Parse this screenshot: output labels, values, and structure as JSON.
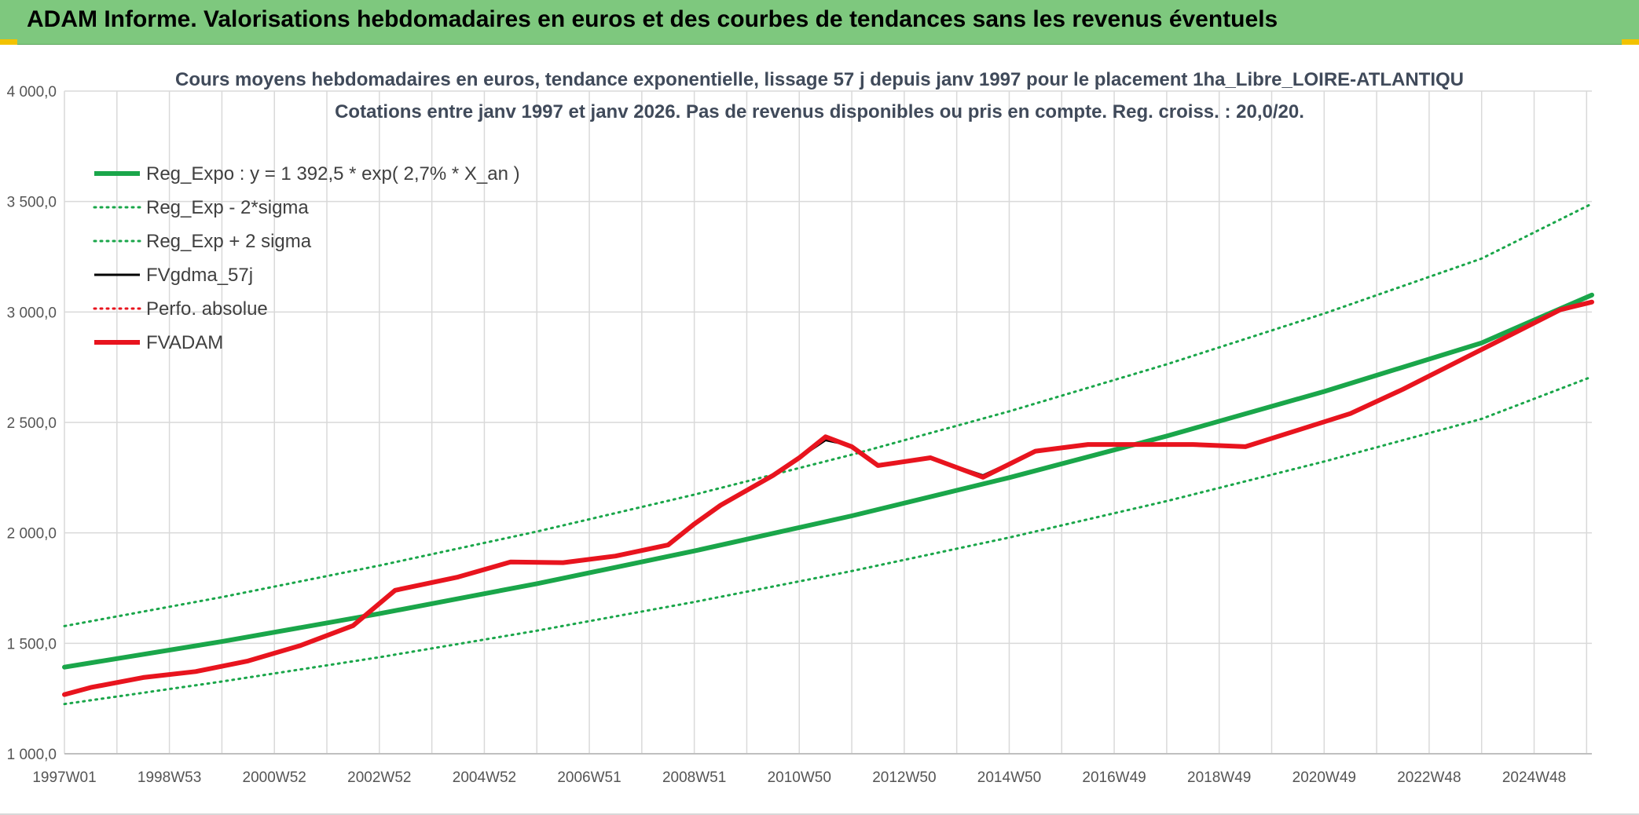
{
  "header": {
    "title": "ADAM Informe. Valorisations hebdomadaires en euros et des courbes de tendances sans les revenus éventuels"
  },
  "colors": {
    "banner": "#7ec87e",
    "accent_yellow": "#f2c200",
    "green": "#1aa64a",
    "red": "#e8141e",
    "black": "#000000"
  },
  "chart_data": {
    "type": "line",
    "title_line1": "Cours moyens hebdomadaires en euros, tendance exponentielle, lissage 57 j depuis janv 1997 pour le placement 1ha_Libre_LOIRE-ATLANTIQU",
    "title_line2": "Cotations entre janv 1997 et janv 2026. Pas de revenus disponibles ou pris en compte. Reg. croiss. : 20,0/20.",
    "ylim": [
      1000,
      4000
    ],
    "y_ticks": [
      {
        "value": 1000,
        "label": "1 000,0"
      },
      {
        "value": 1500,
        "label": "1 500,0"
      },
      {
        "value": 2000,
        "label": "2 000,0"
      },
      {
        "value": 2500,
        "label": "2 500,0"
      },
      {
        "value": 3000,
        "label": "3 000,0"
      },
      {
        "value": 3500,
        "label": "3 500,0"
      },
      {
        "value": 4000,
        "label": "4 000,0"
      }
    ],
    "xlim": [
      1997.0,
      2026.1
    ],
    "x_ticks": [
      {
        "value": 1997.0,
        "label": "1997W01"
      },
      {
        "value": 1999.0,
        "label": "1998W53"
      },
      {
        "value": 2001.0,
        "label": "2000W52"
      },
      {
        "value": 2003.0,
        "label": "2002W52"
      },
      {
        "value": 2005.0,
        "label": "2004W52"
      },
      {
        "value": 2007.0,
        "label": "2006W51"
      },
      {
        "value": 2009.0,
        "label": "2008W51"
      },
      {
        "value": 2011.0,
        "label": "2010W50"
      },
      {
        "value": 2013.0,
        "label": "2012W50"
      },
      {
        "value": 2015.0,
        "label": "2014W50"
      },
      {
        "value": 2017.0,
        "label": "2016W49"
      },
      {
        "value": 2019.0,
        "label": "2018W49"
      },
      {
        "value": 2021.0,
        "label": "2020W49"
      },
      {
        "value": 2023.0,
        "label": "2022W48"
      },
      {
        "value": 2025.0,
        "label": "2024W48"
      }
    ],
    "series": [
      {
        "name": "Reg_Expo : y = 1 392,5 * exp( 2,7% *  X_an )",
        "color": "#1aa64a",
        "style": "solid",
        "width": 6,
        "x": [
          1997,
          2000,
          2003,
          2006,
          2009,
          2012,
          2015,
          2018,
          2021,
          2024,
          2026.1
        ],
        "y": [
          1392,
          1508,
          1634,
          1770,
          1918,
          2077,
          2250,
          2438,
          2640,
          2860,
          3077
        ]
      },
      {
        "name": "Reg_Exp - 2*sigma",
        "color": "#1aa64a",
        "style": "dotted",
        "width": 3,
        "x": [
          1997,
          2000,
          2003,
          2006,
          2009,
          2012,
          2015,
          2018,
          2021,
          2024,
          2026.1
        ],
        "y": [
          1225,
          1327,
          1437,
          1557,
          1687,
          1827,
          1979,
          2144,
          2323,
          2516,
          2707
        ]
      },
      {
        "name": "Reg_Exp + 2 sigma",
        "color": "#1aa64a",
        "style": "dotted",
        "width": 3,
        "x": [
          1997,
          2000,
          2003,
          2006,
          2009,
          2012,
          2015,
          2018,
          2021,
          2024,
          2026.1
        ],
        "y": [
          1578,
          1709,
          1852,
          2006,
          2173,
          2354,
          2550,
          2763,
          2993,
          3242,
          3490
        ]
      },
      {
        "name": "FVgdma_57j",
        "color": "#000000",
        "style": "solid",
        "width": 3,
        "x": [
          1997,
          1997.5,
          1998.5,
          1999.5,
          2000.5,
          2001.5,
          2002.5,
          2003.3,
          2004.5,
          2005.5,
          2006.5,
          2007.5,
          2008.5,
          2009.0,
          2009.5,
          2010.5,
          2011.0,
          2011.5,
          2012.0,
          2012.5,
          2013.5,
          2014.5,
          2015.5,
          2016.5,
          2017.5,
          2018.5,
          2019.5,
          2020.5,
          2021.5,
          2022.5,
          2023.5,
          2024.5,
          2025.5,
          2026.1
        ],
        "y": [
          1268,
          1300,
          1345,
          1372,
          1420,
          1490,
          1580,
          1740,
          1800,
          1868,
          1865,
          1895,
          1945,
          2040,
          2125,
          2260,
          2340,
          2420,
          2395,
          2310,
          2340,
          2260,
          2370,
          2400,
          2400,
          2400,
          2392,
          2465,
          2540,
          2650,
          2770,
          2890,
          3010,
          3045
        ]
      },
      {
        "name": "Perfo. absolue",
        "color": "#e8141e",
        "style": "dotted",
        "width": 3,
        "x": [],
        "y": []
      },
      {
        "name": "FVADAM",
        "color": "#e8141e",
        "style": "solid",
        "width": 6,
        "x": [
          1997,
          1997.5,
          1998.5,
          1999.5,
          2000.5,
          2001.5,
          2002.5,
          2003.3,
          2004.5,
          2005.5,
          2006.5,
          2007.5,
          2008.5,
          2009.0,
          2009.5,
          2010.5,
          2011.0,
          2011.5,
          2012.0,
          2012.5,
          2013.5,
          2014.5,
          2015.5,
          2016.5,
          2017.5,
          2018.5,
          2019.5,
          2020.5,
          2021.5,
          2022.5,
          2023.5,
          2024.5,
          2025.5,
          2026.1
        ],
        "y": [
          1268,
          1300,
          1345,
          1372,
          1420,
          1490,
          1580,
          1740,
          1800,
          1868,
          1865,
          1895,
          1945,
          2040,
          2125,
          2260,
          2340,
          2435,
          2390,
          2305,
          2340,
          2252,
          2370,
          2400,
          2400,
          2400,
          2390,
          2465,
          2540,
          2650,
          2770,
          2890,
          3010,
          3045
        ]
      }
    ]
  }
}
